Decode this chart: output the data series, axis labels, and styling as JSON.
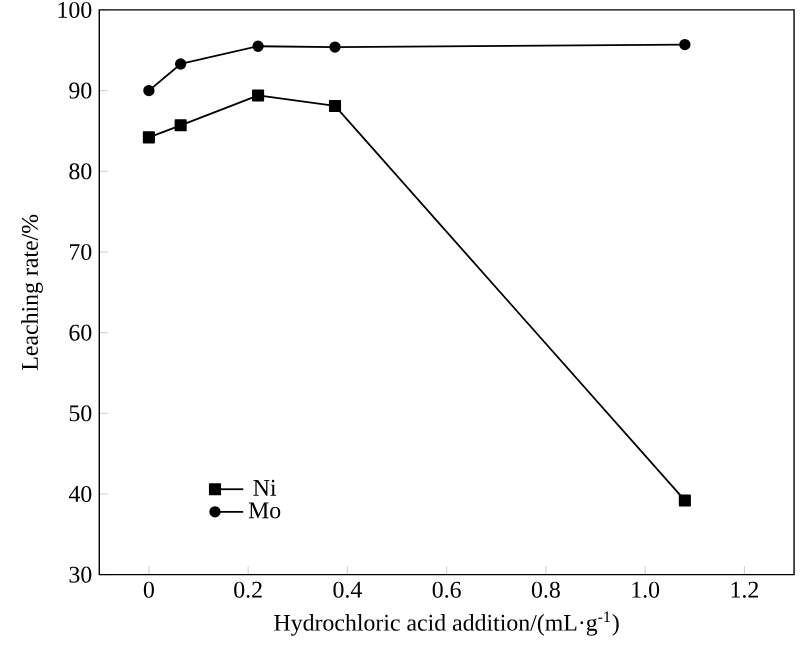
{
  "chart_data": {
    "type": "line",
    "xlabel": "Hydrochloric acid addition/(mL·g$^{-1}$)",
    "ylabel": "Leaching rate/%",
    "xlim": [
      -0.1,
      1.3
    ],
    "xticks": [
      0,
      0.2,
      0.4,
      0.6,
      0.8,
      {
        "value": 1,
        "label": "1.0"
      },
      1.2
    ],
    "ylim": [
      30,
      100
    ],
    "yticks": [
      30,
      40,
      50,
      60,
      70,
      80,
      90,
      100
    ],
    "legend": "bottom left",
    "grid": false,
    "series": [
      {
        "name": "Ni",
        "color": "#000000",
        "marker": "square",
        "x": [
          0,
          0.064,
          0.22,
          0.375,
          1.08
        ],
        "values": [
          84.2,
          85.7,
          89.4,
          88.1,
          39.2
        ]
      },
      {
        "name": "Mo",
        "color": "#000000",
        "marker": "circle",
        "x": [
          0,
          0.064,
          0.22,
          0.375,
          1.08
        ],
        "values": [
          90,
          93.3,
          95.5,
          95.4,
          95.7
        ]
      }
    ]
  }
}
